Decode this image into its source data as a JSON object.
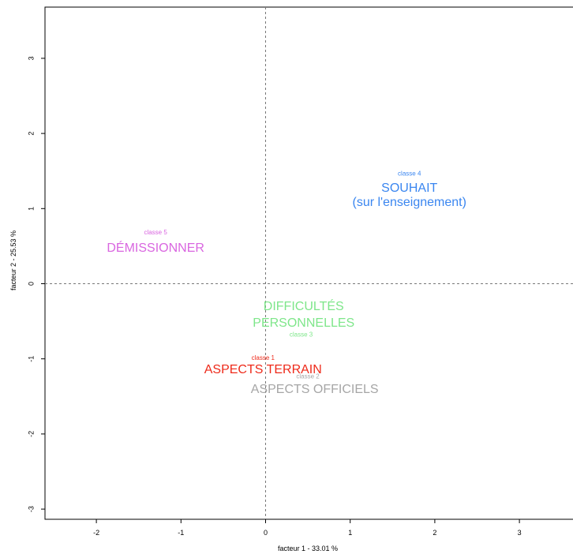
{
  "chart_data": {
    "type": "scatter",
    "title": "",
    "xlabel": "facteur  1 - 33.01 %",
    "ylabel": "facteur  2 - 25.53 %",
    "xlim": [
      -2.65,
      3.7
    ],
    "ylim": [
      -3.15,
      3.7
    ],
    "x_ticks": [
      -2,
      -1,
      0,
      1,
      2,
      3
    ],
    "y_ticks": [
      -3,
      -2,
      -1,
      0,
      1,
      2,
      3
    ],
    "x_tick_labels": [
      "-2",
      "-1",
      "0",
      "1",
      "2",
      "3"
    ],
    "y_tick_labels": [
      "-3",
      "-2",
      "-1",
      "0",
      "1",
      "2",
      "3"
    ],
    "reference_lines": {
      "x": 0,
      "y": 0,
      "style": "dashed"
    },
    "grid": false,
    "classes": [
      {
        "class_label": "classe 5",
        "x": -1.3,
        "y": 0.68,
        "color": "#d966e0",
        "words": [
          {
            "text": "DÉMISSIONNER",
            "x": -1.3,
            "y": 0.47
          }
        ]
      },
      {
        "class_label": "classe 4",
        "x": 1.7,
        "y": 1.46,
        "color": "#3a86f0",
        "words": [
          {
            "text": "SOUHAIT",
            "x": 1.7,
            "y": 1.27
          },
          {
            "text": "(sur l'enseignement)",
            "x": 1.7,
            "y": 1.08
          }
        ]
      },
      {
        "class_label": "classe 3",
        "x": 0.42,
        "y": -0.68,
        "color": "#7ee68a",
        "words": [
          {
            "text": "DIFFICULTÉS",
            "x": 0.45,
            "y": -0.31
          },
          {
            "text": "PERSONNELLES",
            "x": 0.45,
            "y": -0.53
          }
        ]
      },
      {
        "class_label": "classe 1",
        "x": -0.03,
        "y": -0.99,
        "color": "#ee2a1a",
        "words": [
          {
            "text": "ASPECTS TERRAIN",
            "x": -0.03,
            "y": -1.15
          }
        ]
      },
      {
        "class_label": "classe 2",
        "x": 0.5,
        "y": -1.24,
        "color": "#a6a6a6",
        "words": [
          {
            "text": "ASPECTS OFFICIELS",
            "x": 0.58,
            "y": -1.41
          }
        ]
      }
    ]
  }
}
